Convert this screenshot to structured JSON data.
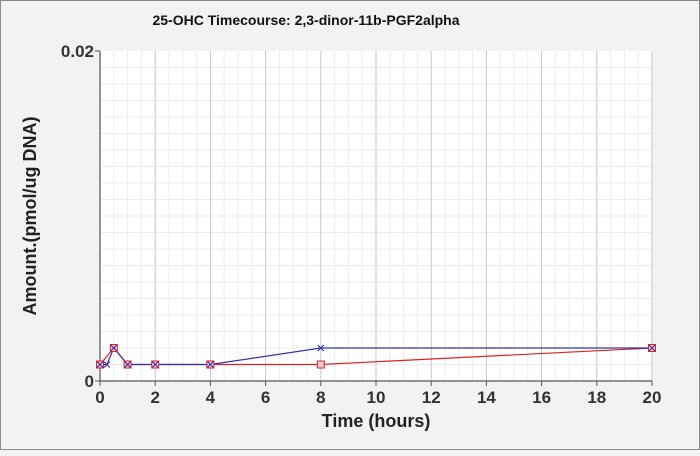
{
  "chart_data": {
    "type": "line",
    "title": "25-OHC Timecourse: 2,3-dinor-11b-PGF2alpha",
    "xlabel": "Time (hours)",
    "ylabel": "Amount.(pmol/ug DNA)",
    "xlim": [
      0,
      20
    ],
    "ylim": [
      0,
      0.02
    ],
    "x_ticks": [
      "0",
      "2",
      "4",
      "6",
      "8",
      "10",
      "12",
      "14",
      "16",
      "18",
      "20"
    ],
    "y_ticks": [
      "0",
      "0.02"
    ],
    "grid": true,
    "legend": "none",
    "series": [
      {
        "color": "#3333aa",
        "marker": "x",
        "x": [
          0,
          0.25,
          0.5,
          1,
          2,
          4,
          8,
          20
        ],
        "values": [
          0.001,
          0.001,
          0.002,
          0.001,
          0.001,
          0.001,
          0.002,
          0.002
        ]
      },
      {
        "color": "#dd2222",
        "marker": "square",
        "x": [
          0,
          0.5,
          1,
          2,
          4,
          8,
          20
        ],
        "values": [
          0.001,
          0.002,
          0.001,
          0.001,
          0.001,
          0.001,
          0.002
        ]
      }
    ]
  }
}
